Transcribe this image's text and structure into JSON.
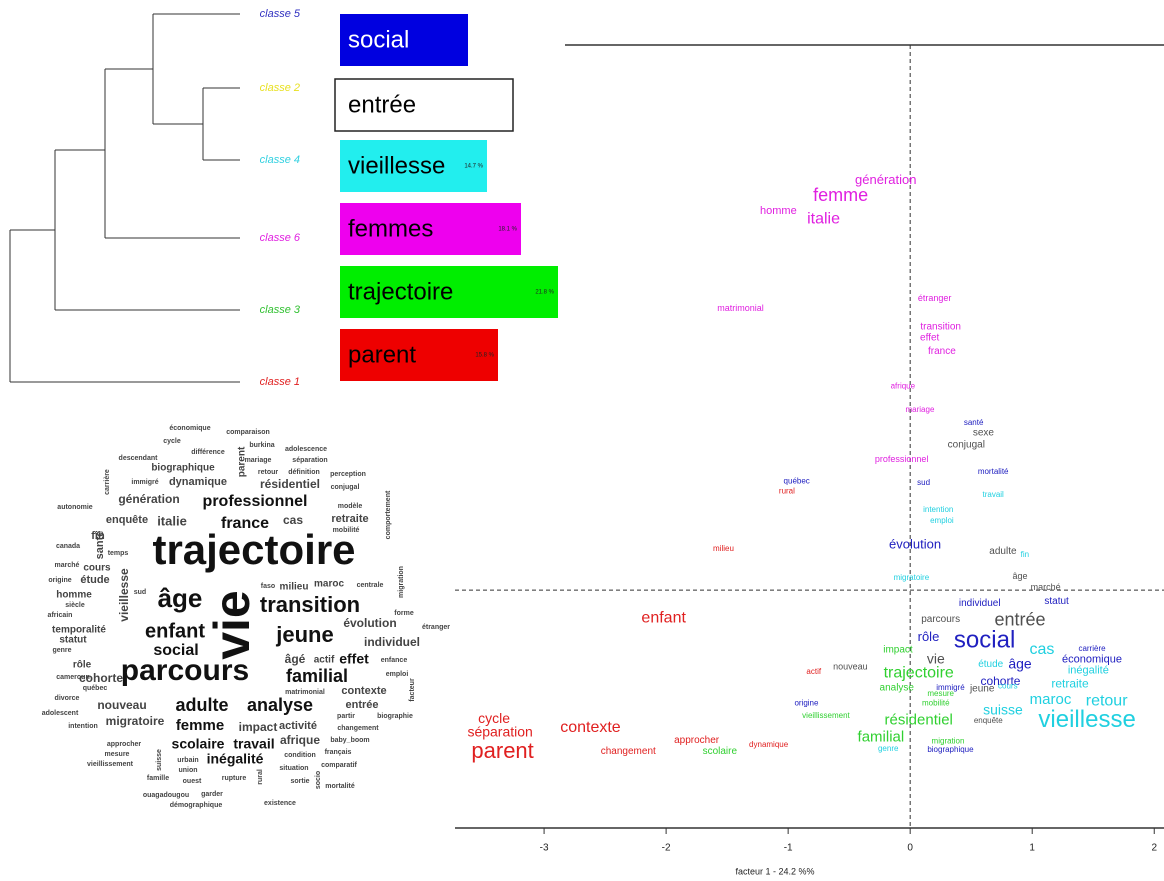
{
  "chart_data": [
    {
      "type": "bar",
      "categories": [
        "social",
        "entrée",
        "vieillesse",
        "femmes",
        "trajectoire",
        "parent"
      ],
      "class_labels": [
        "classe 5",
        "classe 2",
        "classe 4",
        "classe 6",
        "classe 3",
        "classe 1"
      ],
      "colors": [
        "#0000e0",
        "#ffffff",
        "#22eeee",
        "#ee00ee",
        "#00ee00",
        "#ee0000"
      ],
      "label_colors": [
        "#3030c0",
        "#e8e020",
        "#30d0e0",
        "#e020e0",
        "#30c030",
        "#e02020"
      ],
      "values": [
        12.8,
        17.3,
        14.7,
        18.1,
        21.8,
        15.8
      ],
      "value_labels": [
        null,
        null,
        "14.7 %",
        "18.1 %",
        "21.8 %",
        "15.8 %"
      ]
    },
    {
      "type": "wordcloud",
      "words": [
        "économique",
        "comparaison",
        "cycle",
        "différence",
        "burkina",
        "adolescence",
        "descendant",
        "mariage",
        "séparation",
        "biographique",
        "parent",
        "retour",
        "définition",
        "perception",
        "carrière",
        "immigré",
        "dynamique",
        "résidentiel",
        "conjugal",
        "génération",
        "professionnel",
        "modèle",
        "autonomie",
        "mobilité",
        "retraite",
        "comportement",
        "enquête",
        "italie",
        "france",
        "cas",
        "fin",
        "santé",
        "canada",
        "temps",
        "trajectoire",
        "vie",
        "marché",
        "cours",
        "origine",
        "étude",
        "vieillesse",
        "sud",
        "homme",
        "siècle",
        "africain",
        "âge",
        "faso",
        "milieu",
        "maroc",
        "centrale",
        "migration",
        "forme",
        "transition",
        "temporalité",
        "statut",
        "genre",
        "enfant",
        "jeune",
        "évolution",
        "étranger",
        "social",
        "individuel",
        "rôle",
        "cameroun",
        "québec",
        "divorce",
        "adolescent",
        "intention",
        "cohorte",
        "parcours",
        "âgé",
        "actif",
        "effet",
        "enfance",
        "emploi",
        "familial",
        "matrimonial",
        "contexte",
        "facteur",
        "nouveau",
        "adulte",
        "analyse",
        "entrée",
        "partir",
        "biographie",
        "migratoire",
        "femme",
        "impact",
        "activité",
        "changement",
        "approcher",
        "mesure",
        "vieillissement",
        "scolaire",
        "travail",
        "inégalité",
        "afrique",
        "baby_boom",
        "français",
        "suisse",
        "urbain",
        "condition",
        "union",
        "situation",
        "comparatif",
        "famille",
        "ouest",
        "rupture",
        "rural",
        "sortie",
        "mortalité",
        "ouagadougou",
        "garder",
        "socio",
        "démographique",
        "existence"
      ]
    },
    {
      "type": "scatter",
      "xlabel": "facteur 1 - 24.2 %%",
      "xlim": [
        -3.73,
        2.08
      ],
      "ylim": [
        -1.95,
        4.47
      ],
      "xticks": [
        -3,
        -2,
        -1,
        0,
        1,
        2
      ],
      "series": [
        {
          "color": "#e020e0",
          "labels": [
            "génération",
            "femme",
            "homme",
            "italie",
            "matrimonial",
            "étranger",
            "transition",
            "effet",
            "france",
            "afrique",
            "mariage",
            "professionnel"
          ],
          "x": [
            -0.2,
            -0.57,
            -1.08,
            -0.71,
            -1.39,
            0.2,
            0.25,
            0.16,
            0.26,
            -0.06,
            0.08,
            -0.07
          ],
          "y": [
            3.36,
            3.23,
            3.11,
            3.04,
            2.31,
            2.39,
            2.16,
            2.07,
            1.96,
            1.67,
            1.48,
            1.07
          ]
        },
        {
          "color": "#2020c0",
          "labels": [
            "santé",
            "québec",
            "sud",
            "mortalité",
            "évolution",
            "individuel",
            "statut",
            "rôle",
            "social",
            "âge",
            "cohorte",
            "carrière",
            "économique",
            "origine",
            "immigré",
            "biographique"
          ],
          "x": [
            0.52,
            -0.93,
            0.11,
            0.68,
            0.04,
            0.57,
            1.2,
            0.15,
            0.61,
            0.9,
            0.74,
            1.49,
            1.49,
            -0.85,
            0.33,
            0.33
          ],
          "y": [
            1.37,
            0.89,
            0.88,
            0.97,
            0.37,
            -0.11,
            -0.09,
            -0.39,
            -0.42,
            -0.61,
            -0.75,
            -0.48,
            -0.57,
            -0.93,
            -0.8,
            -1.31
          ]
        },
        {
          "color": "#505050",
          "labels": [
            "sexe",
            "conjugal",
            "adulte",
            "âge",
            "marché",
            "parcours",
            "entrée",
            "vie",
            "nouveau",
            "jeune",
            "enquête"
          ],
          "x": [
            0.6,
            0.46,
            0.76,
            0.9,
            1.11,
            0.25,
            0.9,
            0.21,
            -0.49,
            0.59,
            0.64
          ],
          "y": [
            1.29,
            1.19,
            0.32,
            0.11,
            0.02,
            -0.24,
            -0.25,
            -0.57,
            -0.63,
            -0.81,
            -1.07
          ]
        },
        {
          "color": "#20d0e0",
          "labels": [
            "travail",
            "intention",
            "emploi",
            "fin",
            "migratoire",
            "cas",
            "étude",
            "inégalité",
            "retraite",
            "cours",
            "maroc",
            "retour",
            "suisse",
            "vieillesse",
            "genre"
          ],
          "x": [
            0.68,
            0.23,
            0.26,
            0.94,
            0.01,
            1.08,
            0.66,
            1.46,
            1.31,
            0.8,
            1.15,
            1.61,
            0.76,
            1.45,
            -0.18
          ],
          "y": [
            0.78,
            0.66,
            0.57,
            0.29,
            0.1,
            -0.49,
            -0.61,
            -0.66,
            -0.77,
            -0.79,
            -0.9,
            -0.91,
            -0.99,
            -1.07,
            -1.3
          ]
        },
        {
          "color": "#30d030",
          "labels": [
            "impact",
            "trajectoire",
            "analyse",
            "mesure",
            "mobilité",
            "vieillissement",
            "résidentiel",
            "familial",
            "migration",
            "scolaire"
          ],
          "x": [
            -0.1,
            0.07,
            -0.11,
            0.25,
            0.21,
            -0.69,
            0.07,
            -0.24,
            0.31,
            -1.56
          ],
          "y": [
            -0.49,
            -0.68,
            -0.8,
            -0.85,
            -0.93,
            -1.03,
            -1.07,
            -1.21,
            -1.24,
            -1.32
          ]
        },
        {
          "color": "#e02020",
          "labels": [
            "enfant",
            "milieu",
            "rural",
            "actif",
            "cycle",
            "séparation",
            "parent",
            "contexte",
            "changement",
            "approcher",
            "dynamique"
          ],
          "x": [
            -2.02,
            -1.53,
            -1.01,
            -0.79,
            -3.41,
            -3.36,
            -3.34,
            -2.62,
            -2.31,
            -1.75,
            -1.16
          ],
          "y": [
            -0.23,
            0.34,
            0.81,
            -0.67,
            -1.06,
            -1.17,
            -1.33,
            -1.13,
            -1.32,
            -1.23,
            -1.27
          ]
        }
      ]
    }
  ]
}
